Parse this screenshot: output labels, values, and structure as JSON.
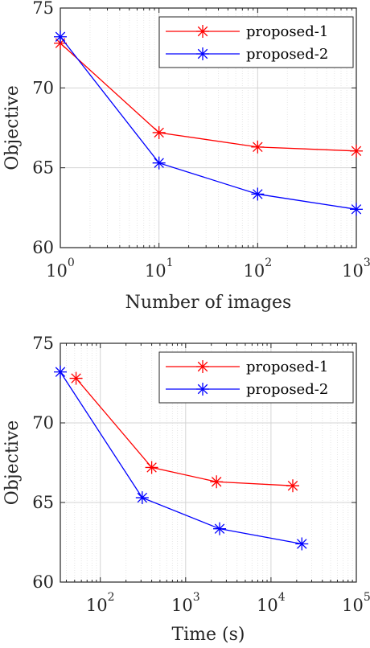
{
  "chart_data": [
    {
      "type": "line",
      "xscale": "log",
      "xlabel": "Number of images",
      "ylabel": "Objective",
      "xlim": [
        1,
        1000
      ],
      "ylim": [
        60,
        75
      ],
      "x_ticks": [
        {
          "value": 1,
          "base": "10",
          "exp": "0"
        },
        {
          "value": 10,
          "base": "10",
          "exp": "1"
        },
        {
          "value": 100,
          "base": "10",
          "exp": "2"
        },
        {
          "value": 1000,
          "base": "10",
          "exp": "3"
        }
      ],
      "y_ticks": [
        "60",
        "65",
        "70",
        "75"
      ],
      "grid": true,
      "legend_position": "top-right",
      "series": [
        {
          "name": "proposed-1",
          "color": "#ff0000",
          "marker": "asterisk",
          "x": [
            1,
            10,
            100,
            1000
          ],
          "y": [
            72.8,
            67.2,
            66.3,
            66.05
          ]
        },
        {
          "name": "proposed-2",
          "color": "#0000ff",
          "marker": "asterisk",
          "x": [
            1,
            10,
            100,
            1000
          ],
          "y": [
            73.2,
            65.3,
            63.35,
            62.4
          ]
        }
      ]
    },
    {
      "type": "line",
      "xscale": "log",
      "xlabel": "Time (s)",
      "ylabel": "Objective",
      "xlim": [
        34,
        100000
      ],
      "ylim": [
        60,
        75
      ],
      "x_ticks": [
        {
          "value": 100,
          "base": "10",
          "exp": "2"
        },
        {
          "value": 1000,
          "base": "10",
          "exp": "3"
        },
        {
          "value": 10000,
          "base": "10",
          "exp": "4"
        },
        {
          "value": 100000,
          "base": "10",
          "exp": "5"
        }
      ],
      "y_ticks": [
        "60",
        "65",
        "70",
        "75"
      ],
      "grid": true,
      "legend_position": "top-right",
      "series": [
        {
          "name": "proposed-1",
          "color": "#ff0000",
          "marker": "asterisk",
          "x": [
            52,
            400,
            2300,
            18000
          ],
          "y": [
            72.8,
            67.2,
            66.3,
            66.05
          ]
        },
        {
          "name": "proposed-2",
          "color": "#0000ff",
          "marker": "asterisk",
          "x": [
            34,
            310,
            2500,
            23000
          ],
          "y": [
            73.2,
            65.3,
            63.35,
            62.4
          ]
        }
      ]
    }
  ]
}
